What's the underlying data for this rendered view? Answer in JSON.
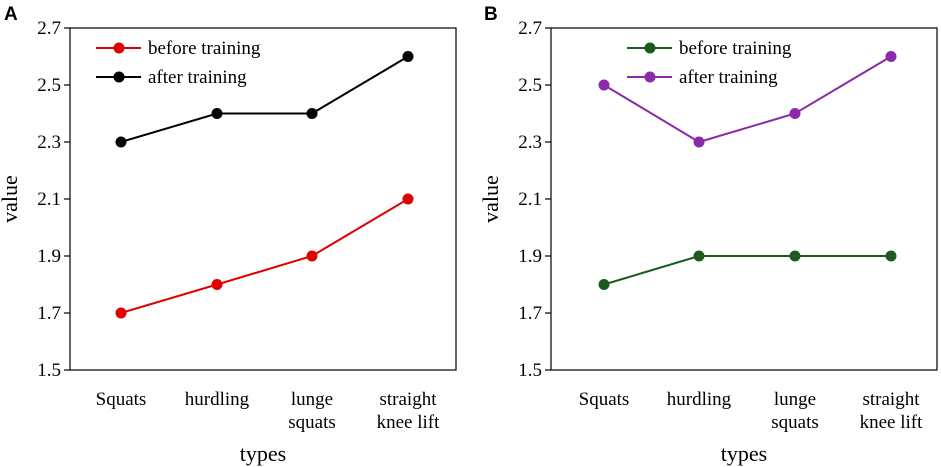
{
  "chart_data": [
    {
      "panel_label": "A",
      "type": "line",
      "categories": [
        [
          "Squats"
        ],
        [
          "hurdling"
        ],
        [
          "lunge",
          "squats"
        ],
        [
          "straight",
          "knee lift"
        ]
      ],
      "xlabel": "types",
      "ylabel": "value",
      "ylim": [
        1.5,
        2.7
      ],
      "yticks": [
        "1.5",
        "1.7",
        "1.9",
        "2.1",
        "2.3",
        "2.5",
        "2.7"
      ],
      "legend_position": "top-left",
      "series": [
        {
          "name": "before training",
          "color": "#e00000",
          "values": [
            1.7,
            1.8,
            1.9,
            2.1
          ]
        },
        {
          "name": "after training",
          "color": "#000000",
          "values": [
            2.3,
            2.4,
            2.4,
            2.6
          ]
        }
      ]
    },
    {
      "panel_label": "B",
      "type": "line",
      "categories": [
        [
          "Squats"
        ],
        [
          "hurdling"
        ],
        [
          "lunge",
          "squats"
        ],
        [
          "straight",
          "knee lift"
        ]
      ],
      "xlabel": "types",
      "ylabel": "value",
      "ylim": [
        1.5,
        2.7
      ],
      "yticks": [
        "1.5",
        "1.7",
        "1.9",
        "2.1",
        "2.3",
        "2.5",
        "2.7"
      ],
      "legend_position": "top-center",
      "series": [
        {
          "name": "before training",
          "color": "#1e5a1e",
          "values": [
            1.8,
            1.9,
            1.9,
            1.9
          ]
        },
        {
          "name": "after training",
          "color": "#8a2aa8",
          "values": [
            2.5,
            2.3,
            2.4,
            2.6
          ]
        }
      ]
    }
  ]
}
